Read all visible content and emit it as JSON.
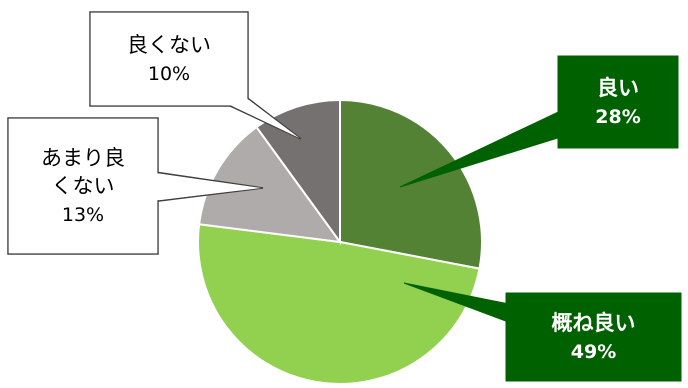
{
  "chart_data": {
    "type": "pie",
    "title": "",
    "slices": [
      {
        "label_lines": [
          "良い"
        ],
        "value": 28,
        "value_label": "28%",
        "color": "#548235",
        "callout_style": "dark"
      },
      {
        "label_lines": [
          "概ね良い"
        ],
        "value": 49,
        "value_label": "49%",
        "color": "#92D050",
        "callout_style": "dark"
      },
      {
        "label_lines": [
          "あまり良",
          "くない"
        ],
        "value": 13,
        "value_label": "13%",
        "color": "#AFABAB",
        "callout_style": "light"
      },
      {
        "label_lines": [
          "良くない"
        ],
        "value": 10,
        "value_label": "10%",
        "color": "#767171",
        "callout_style": "light"
      }
    ],
    "legend": "none",
    "data_labels": "callouts"
  },
  "colors": {
    "dark_callout_fill": "#006100",
    "dark_callout_text": "#ffffff",
    "light_callout_fill": "#ffffff",
    "light_callout_text": "#000000",
    "light_callout_border": "#404040",
    "slice_border": "#ffffff"
  }
}
